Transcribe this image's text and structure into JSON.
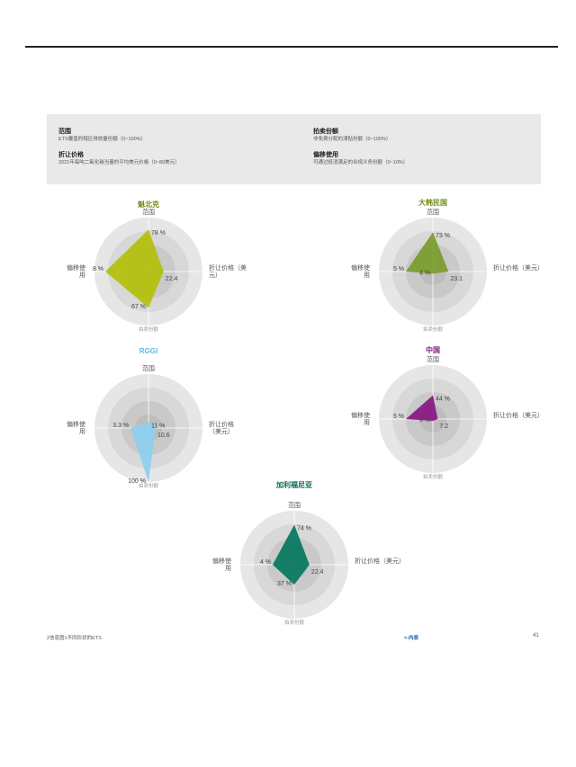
{
  "legend": {
    "items": [
      {
        "title": "范围",
        "desc": "ETS覆盖的辖区排放量份额（0~100%）"
      },
      {
        "title": "拍卖份额",
        "desc": "非免费分配的津贴份额（0~100%）"
      },
      {
        "title": "折让价格",
        "desc": "2021年每吨二氧化碳当量的平均美元价格（0~80美元）"
      },
      {
        "title": "偏移使用",
        "desc": "可通过抵消满足的合规义务份额（0~10%）"
      }
    ]
  },
  "chart_data": [
    {
      "type": "radar",
      "title": "魁北克",
      "color": "#b4c10f",
      "title_color": "#6f8a1a",
      "axes": [
        "范围",
        "折让价格（美元）",
        "拍卖份额",
        "偏移使用"
      ],
      "values": [
        78,
        22.4,
        67,
        8
      ],
      "value_labels": [
        "78 %",
        "22.4",
        "67 %",
        "8 %"
      ],
      "axis_labels": [
        "范围",
        "折让价格（美\n元）",
        "拍卖份额",
        "偏移使\n用"
      ],
      "max": [
        100,
        80,
        100,
        10
      ]
    },
    {
      "type": "radar",
      "title": "大韩民国",
      "color": "#7a9e2e",
      "title_color": "#6f8a1a",
      "axes": [
        "范围",
        "折让价格（美元）",
        "拍卖份额",
        "偏移使用"
      ],
      "values": [
        73,
        23.1,
        4,
        5
      ],
      "value_labels": [
        "73 %",
        "23.1",
        "4 %",
        "5 %"
      ],
      "axis_labels": [
        "范围",
        "折让价格（美元）",
        "拍卖份额",
        "偏移使\n用"
      ],
      "max": [
        100,
        80,
        100,
        10
      ]
    },
    {
      "type": "radar",
      "title": "RGGI",
      "color": "#8fd0ee",
      "title_color": "#5bb6e0",
      "axes": [
        "范围",
        "折让价格（美元）",
        "拍卖份额",
        "偏移使用"
      ],
      "values": [
        11,
        10.6,
        100,
        3.3
      ],
      "value_labels": [
        "11 %",
        "10.6",
        "100 %",
        "3.3 %"
      ],
      "axis_labels": [
        "范围",
        "折让价格\n（美元）",
        "拍卖份额",
        "偏移使\n用"
      ],
      "max": [
        100,
        80,
        100,
        10
      ]
    },
    {
      "type": "radar",
      "title": "中国",
      "color": "#8a1a83",
      "title_color": "#7a1a7a",
      "axes": [
        "范围",
        "折让价格（美元）",
        "拍卖份额",
        "偏移使用"
      ],
      "values": [
        44,
        7.2,
        0,
        5
      ],
      "value_labels": [
        "44 %",
        "7.2",
        "0 %",
        "5 %"
      ],
      "axis_labels": [
        "范围",
        "折让价格（美元）",
        "拍卖份额",
        "偏移使\n用"
      ],
      "max": [
        100,
        80,
        100,
        10
      ]
    },
    {
      "type": "radar",
      "title": "加利福尼亚",
      "color": "#0a7a60",
      "title_color": "#0a6a55",
      "axes": [
        "范围",
        "折让价格（美元）",
        "拍卖份额",
        "偏移使用"
      ],
      "values": [
        74,
        22.4,
        37,
        4
      ],
      "value_labels": [
        "74 %",
        "22.4",
        "37 %",
        "4 %"
      ],
      "axis_labels": [
        "范围",
        "折让价格（美元）",
        "拍卖份额",
        "偏移使\n用"
      ],
      "max": [
        100,
        80,
        100,
        10
      ]
    }
  ],
  "footer": {
    "left": "2信息图1不同形状的ETS",
    "nav": "<-内容",
    "page": "41"
  }
}
